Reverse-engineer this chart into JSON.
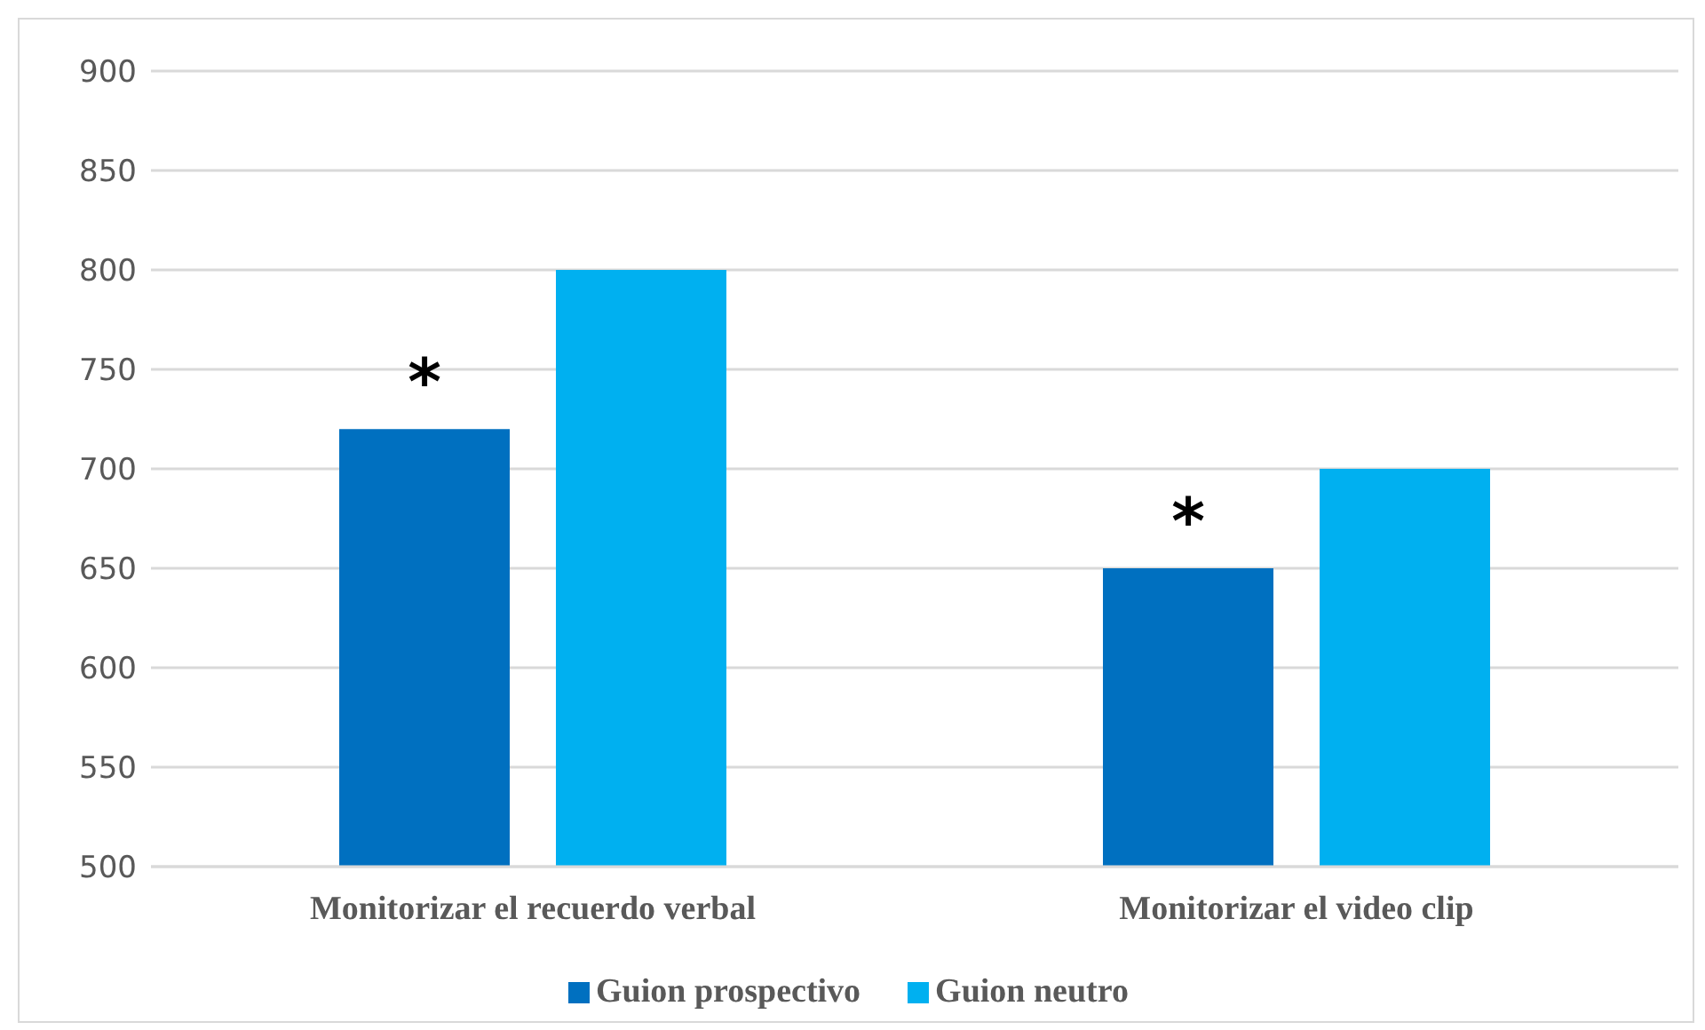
{
  "chart_data": {
    "type": "bar",
    "categories": [
      "Monitorizar el recuerdo verbal",
      "Monitorizar el video clip"
    ],
    "series": [
      {
        "name": "Guion prospectivo",
        "color": "#0070c0",
        "values": [
          720,
          650
        ]
      },
      {
        "name": "Guion neutro",
        "color": "#00b0f0",
        "values": [
          800,
          700
        ]
      }
    ],
    "ylim": [
      500,
      900
    ],
    "yticks": [
      500,
      550,
      600,
      650,
      700,
      750,
      800,
      850,
      900
    ],
    "grid": "y",
    "legend": "bottom",
    "annotations": [
      "*",
      "*"
    ]
  }
}
